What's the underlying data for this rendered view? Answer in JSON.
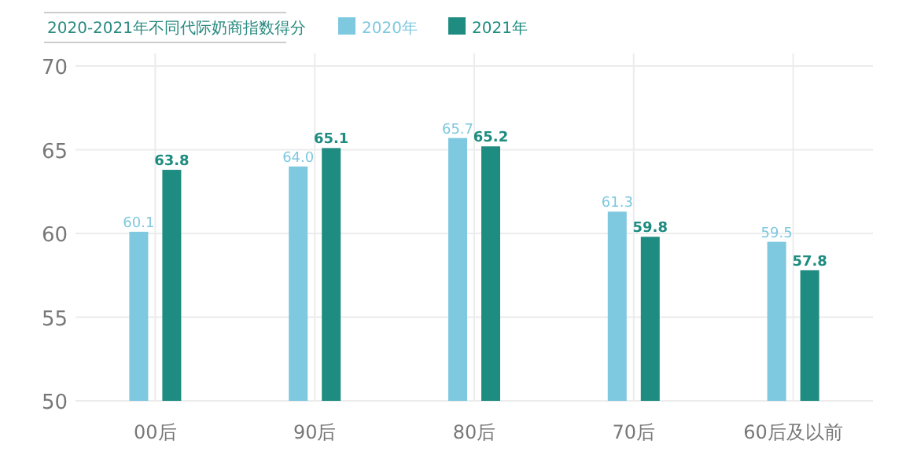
{
  "chart_data": {
    "type": "bar",
    "title": "2020-2021年不同代际奶商指数得分",
    "categories": [
      "00后",
      "90后",
      "80后",
      "70后",
      "60后及以前"
    ],
    "series": [
      {
        "name": "2020年",
        "color": "#7ec8e0",
        "values": [
          60.1,
          64.0,
          65.7,
          61.3,
          59.5
        ],
        "value_labels": [
          "60.1",
          "64.0",
          "65.7",
          "61.3",
          "59.5"
        ]
      },
      {
        "name": "2021年",
        "color": "#1e8c80",
        "values": [
          63.8,
          65.1,
          65.2,
          59.8,
          57.8
        ],
        "value_labels": [
          "63.8",
          "65.1",
          "65.2",
          "59.8",
          "57.8"
        ]
      }
    ],
    "ylim": [
      50,
      70
    ],
    "yticks": [
      50,
      55,
      60,
      65,
      70
    ],
    "grid": true,
    "legend": "top"
  }
}
